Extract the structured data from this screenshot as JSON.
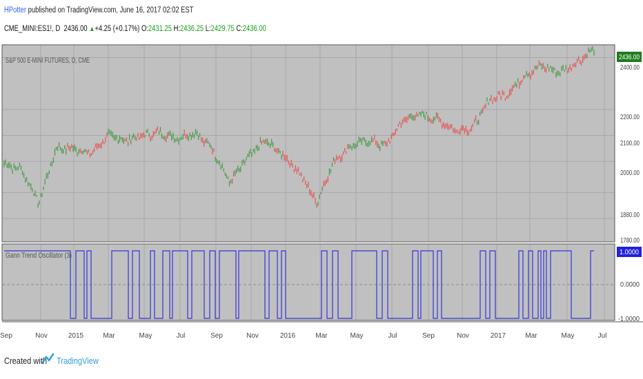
{
  "header": {
    "author": "HPotter",
    "published_text": "published on TradingView.com, June 16, 2017 02:02 EST",
    "symbol": "CME_MINI:ES1!, D",
    "last": "2436.00",
    "change": "+4.25 (+0.17%)",
    "o_label": "O:",
    "open": "2431.25",
    "h_label": "H:",
    "high": "2436.25",
    "l_label": "L:",
    "low": "2429.75",
    "c_label": "C:",
    "close": "2436.00"
  },
  "main_pane": {
    "title": "S&P 500 E-MINI FUTURES, D, CME",
    "y_ticks": [
      "2400.00",
      "2200.00",
      "2100.00",
      "2000.00",
      "1880.00",
      "1780.00"
    ],
    "price_label": "2436.00"
  },
  "osc_pane": {
    "title": "Gann Trend Oscillator (3)",
    "y_ticks": [
      "1.0000",
      "0.0000",
      "-1.0000"
    ],
    "value_label": "1.0000"
  },
  "x_axis": {
    "labels": [
      "Sep",
      "Nov",
      "2015",
      "Mar",
      "May",
      "Jul",
      "Sep",
      "Nov",
      "2016",
      "Mar",
      "May",
      "Jul",
      "Sep",
      "Nov",
      "2017",
      "Mar",
      "May",
      "Jul"
    ]
  },
  "footer": {
    "created_with": "Created with",
    "brand": "TradingView"
  },
  "colors": {
    "chart_bg": "#c0c0c0",
    "grid": "#a8a8a8",
    "up_bar": "#4e9a4e",
    "down_bar": "#e05a5a",
    "oscillator_line": "#3333dd",
    "price_tag": "#1e7d1e",
    "osc_tag": "#2222dd"
  },
  "chart_data": [
    {
      "type": "line",
      "title": "S&P 500 E-MINI FUTURES, D, CME",
      "x": [
        "2014-08",
        "2014-09",
        "2014-10",
        "2014-11",
        "2014-12",
        "2015-01",
        "2015-02",
        "2015-03",
        "2015-04",
        "2015-05",
        "2015-06",
        "2015-07",
        "2015-08",
        "2015-09",
        "2015-10",
        "2015-11",
        "2015-12",
        "2016-01",
        "2016-02",
        "2016-03",
        "2016-04",
        "2016-05",
        "2016-06",
        "2016-07",
        "2016-08",
        "2016-09",
        "2016-10",
        "2016-11",
        "2016-12",
        "2017-01",
        "2017-02",
        "2017-03",
        "2017-04",
        "2017-05",
        "2017-06"
      ],
      "y": [
        1990,
        1970,
        1840,
        2050,
        2050,
        2030,
        2100,
        2080,
        2100,
        2110,
        2090,
        2110,
        2050,
        1920,
        2010,
        2080,
        2030,
        1960,
        1840,
        2000,
        2060,
        2080,
        2060,
        2160,
        2180,
        2160,
        2120,
        2130,
        2240,
        2260,
        2330,
        2370,
        2340,
        2380,
        2436
      ],
      "ylim": [
        1750,
        2460
      ],
      "ticks": [
        "2400.00",
        "2200.00",
        "2100.00",
        "2000.00",
        "1880.00",
        "1780.00"
      ]
    },
    {
      "type": "line",
      "title": "Gann Trend Oscillator (3)",
      "ylim": [
        -1.1,
        1.1
      ],
      "ticks": [
        "1.0000",
        "0.0000",
        "-1.0000"
      ],
      "x_range": [
        0,
        855
      ],
      "steps": [
        [
          0,
          1
        ],
        [
          96,
          -1
        ],
        [
          104,
          1
        ],
        [
          116,
          -1
        ],
        [
          120,
          1
        ],
        [
          126,
          -1
        ],
        [
          156,
          1
        ],
        [
          180,
          -1
        ],
        [
          186,
          1
        ],
        [
          196,
          -1
        ],
        [
          212,
          1
        ],
        [
          218,
          -1
        ],
        [
          230,
          1
        ],
        [
          240,
          -1
        ],
        [
          244,
          1
        ],
        [
          266,
          -1
        ],
        [
          272,
          1
        ],
        [
          290,
          -1
        ],
        [
          298,
          1
        ],
        [
          306,
          -1
        ],
        [
          312,
          1
        ],
        [
          336,
          -1
        ],
        [
          340,
          1
        ],
        [
          378,
          -1
        ],
        [
          384,
          1
        ],
        [
          396,
          -1
        ],
        [
          402,
          1
        ],
        [
          408,
          -1
        ],
        [
          460,
          1
        ],
        [
          468,
          -1
        ],
        [
          476,
          1
        ],
        [
          484,
          -1
        ],
        [
          504,
          1
        ],
        [
          540,
          -1
        ],
        [
          548,
          1
        ],
        [
          556,
          -1
        ],
        [
          592,
          1
        ],
        [
          600,
          -1
        ],
        [
          604,
          1
        ],
        [
          622,
          -1
        ],
        [
          628,
          1
        ],
        [
          634,
          -1
        ],
        [
          690,
          1
        ],
        [
          698,
          -1
        ],
        [
          704,
          1
        ],
        [
          712,
          -1
        ],
        [
          746,
          1
        ],
        [
          752,
          -1
        ],
        [
          760,
          1
        ],
        [
          766,
          -1
        ],
        [
          774,
          1
        ],
        [
          778,
          -1
        ],
        [
          782,
          1
        ],
        [
          786,
          -1
        ],
        [
          792,
          1
        ],
        [
          822,
          -1
        ],
        [
          850,
          1
        ]
      ]
    }
  ]
}
